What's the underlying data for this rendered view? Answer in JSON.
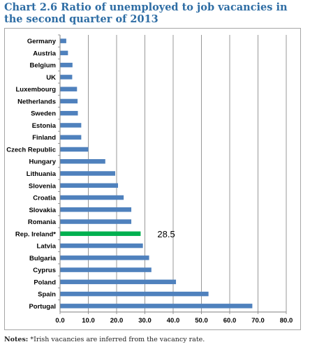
{
  "title": "Chart 2.6 Ratio of unemployed to job vacancies in the second quarter of 2013",
  "notes": {
    "label": "Notes:",
    "text": " *Irish vacancies are inferred from the vacancy rate."
  },
  "chart_data": {
    "type": "bar",
    "orientation": "horizontal",
    "categories": [
      "Germany",
      "Austria",
      "Belgium",
      "UK",
      "Luxembourg",
      "Netherlands",
      "Sweden",
      "Estonia",
      "Finland",
      "Czech Republic",
      "Hungary",
      "Lithuania",
      "Slovenia",
      "Croatia",
      "Slovakia",
      "Romania",
      "Rep. Ireland*",
      "Latvia",
      "Bulgaria",
      "Cyprus",
      "Poland",
      "Spain",
      "Portugal"
    ],
    "values": [
      2.2,
      2.8,
      4.4,
      4.3,
      6.0,
      6.2,
      6.3,
      7.5,
      7.5,
      10.0,
      16.0,
      19.5,
      20.5,
      22.5,
      25.2,
      25.2,
      28.5,
      29.3,
      31.5,
      32.3,
      41.0,
      52.5,
      68.0
    ],
    "highlight_index": 16,
    "annotation": "28.5",
    "xlim": [
      0,
      80
    ],
    "x_ticks": [
      "0.0",
      "10.0",
      "20.0",
      "30.0",
      "40.0",
      "50.0",
      "60.0",
      "70.0",
      "80.0"
    ],
    "grid": true,
    "colors": {
      "bar": "#4f81bd",
      "highlight": "#00b050",
      "grid": "#7f7f7f"
    }
  }
}
